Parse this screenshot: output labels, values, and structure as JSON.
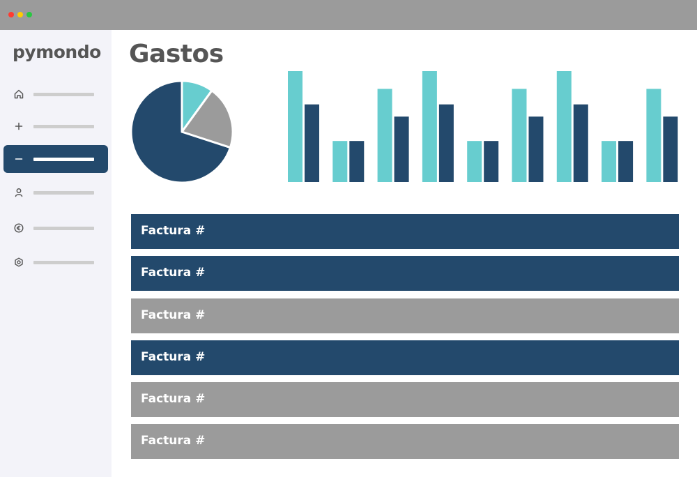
{
  "window": {
    "controls": [
      {
        "name": "close",
        "color": "#ff3b30"
      },
      {
        "name": "minimize",
        "color": "#ffcc00"
      },
      {
        "name": "maximize",
        "color": "#28c840"
      }
    ]
  },
  "sidebar": {
    "logo": "pymondo",
    "items": [
      {
        "icon": "home-icon",
        "active": false
      },
      {
        "icon": "plus-icon",
        "active": false
      },
      {
        "icon": "minus-icon",
        "active": true
      },
      {
        "icon": "user-icon",
        "active": false
      },
      {
        "icon": "euro-icon",
        "active": false
      },
      {
        "icon": "settings-icon",
        "active": false
      }
    ]
  },
  "main": {
    "title": "Gastos",
    "invoices": [
      {
        "label": "Factura #",
        "status": "dark"
      },
      {
        "label": "Factura #",
        "status": "dark"
      },
      {
        "label": "Factura #",
        "status": "gray"
      },
      {
        "label": "Factura #",
        "status": "dark"
      },
      {
        "label": "Factura #",
        "status": "gray"
      },
      {
        "label": "Factura #",
        "status": "gray"
      }
    ]
  },
  "colors": {
    "dark": "#23496c",
    "teal": "#67cdcf",
    "gray": "#9b9b9b"
  },
  "chart_data": [
    {
      "type": "pie",
      "slices": [
        {
          "value": 70,
          "color": "#23496c"
        },
        {
          "value": 10,
          "color": "#67cdcf"
        },
        {
          "value": 20,
          "color": "#9b9b9b"
        }
      ]
    },
    {
      "type": "bar",
      "ylim": [
        0,
        100
      ],
      "series": [
        {
          "color": "#67cdcf",
          "values": [
            100,
            37,
            84,
            100,
            37,
            84,
            100,
            37,
            84
          ]
        },
        {
          "color": "#23496c",
          "values": [
            70,
            37,
            59,
            70,
            37,
            59,
            70,
            37,
            59
          ]
        }
      ]
    }
  ]
}
